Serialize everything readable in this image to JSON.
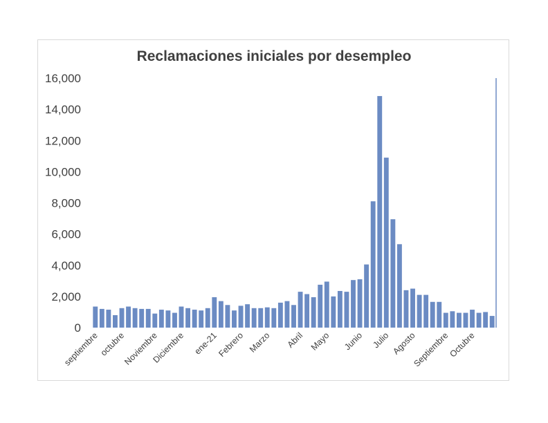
{
  "chart_data": {
    "type": "bar",
    "title": "Reclamaciones iniciales por desempleo",
    "xlabel": "",
    "ylabel": "",
    "ylim": [
      0,
      16000
    ],
    "y_ticks": [
      "0",
      "2,000",
      "4,000",
      "6,000",
      "8,000",
      "10,000",
      "12,000",
      "14,000",
      "16,000"
    ],
    "x_tick_labels": [
      {
        "label": "septiembre",
        "index": 0
      },
      {
        "label": "octubre",
        "index": 4
      },
      {
        "label": "Noviembre",
        "index": 9
      },
      {
        "label": "Diciembre",
        "index": 13
      },
      {
        "label": "ene-21",
        "index": 18
      },
      {
        "label": "Febrero",
        "index": 22
      },
      {
        "label": "Marzo",
        "index": 26
      },
      {
        "label": "Abril",
        "index": 31
      },
      {
        "label": "Mayo",
        "index": 35
      },
      {
        "label": "Junio",
        "index": 40
      },
      {
        "label": "Julio",
        "index": 44
      },
      {
        "label": "Agosto",
        "index": 48
      },
      {
        "label": "Septiembre",
        "index": 53
      },
      {
        "label": "Octubre",
        "index": 57
      }
    ],
    "values": [
      1350,
      1200,
      1150,
      800,
      1250,
      1350,
      1250,
      1200,
      1200,
      900,
      1150,
      1100,
      950,
      1350,
      1250,
      1150,
      1100,
      1250,
      1950,
      1700,
      1450,
      1100,
      1400,
      1500,
      1250,
      1250,
      1300,
      1250,
      1600,
      1700,
      1450,
      2300,
      2150,
      1950,
      2750,
      2950,
      2000,
      2350,
      2300,
      3050,
      3100,
      4050,
      8100,
      14850,
      10900,
      6950,
      5350,
      2400,
      2500,
      2100,
      2100,
      1650,
      1650,
      950,
      1050,
      950,
      950,
      1150,
      950,
      1000,
      750
    ],
    "bar_color": "#6b8bc3",
    "grid": false,
    "legend": "none"
  }
}
